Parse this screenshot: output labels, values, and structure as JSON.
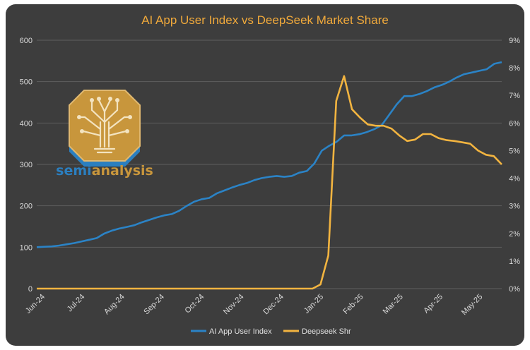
{
  "colors": {
    "background": "#3d3d3d",
    "title": "#f0a93b",
    "user_index": "#2b83c6",
    "deepseek": "#f2b440",
    "logo_gold": "#c8963c",
    "logo_blue": "#2b7fc0"
  },
  "logo": {
    "text_a": "semi",
    "text_b": "analysis",
    "icon": "tree-circuit-octagon-icon"
  },
  "chart_data": {
    "type": "line",
    "title": "AI App User Index vs DeepSeek Market Share",
    "xlabel": "",
    "ylabel": "",
    "y_left": {
      "ticks": [
        "0",
        "100",
        "200",
        "300",
        "400",
        "500",
        "600"
      ],
      "min": 0,
      "max": 600
    },
    "y_right": {
      "ticks": [
        "0%",
        "1%",
        "2%",
        "3%",
        "4%",
        "5%",
        "6%",
        "7%",
        "8%",
        "9%"
      ],
      "min": 0,
      "max": 9
    },
    "x_tick_labels": [
      "Jun-24",
      "Jul-24",
      "Aug-24",
      "Sep-24",
      "Oct-24",
      "Nov-24",
      "Dec-24",
      "Jan-25",
      "Feb-25",
      "Mar-25",
      "Apr-25",
      "May-25"
    ],
    "legend": {
      "position": "bottom"
    },
    "grid": true,
    "series": [
      {
        "name": "AI App User Index",
        "axis": "left",
        "values": [
          100,
          101,
          102,
          104,
          107,
          110,
          114,
          118,
          122,
          133,
          140,
          145,
          149,
          153,
          160,
          166,
          172,
          177,
          180,
          188,
          200,
          210,
          216,
          219,
          230,
          237,
          244,
          250,
          255,
          262,
          267,
          270,
          272,
          270,
          272,
          280,
          284,
          302,
          333,
          345,
          355,
          370,
          370,
          373,
          378,
          385,
          395,
          420,
          445,
          465,
          465,
          470,
          477,
          486,
          492,
          500,
          510,
          518,
          522,
          526,
          530,
          543,
          547
        ]
      },
      {
        "name": "Deepseek Shr",
        "axis": "right",
        "values": [
          0,
          0,
          0,
          0,
          0,
          0,
          0,
          0,
          0,
          0,
          0,
          0,
          0,
          0,
          0,
          0,
          0,
          0,
          0,
          0,
          0,
          0,
          0,
          0,
          0,
          0,
          0,
          0,
          0,
          0,
          0,
          0,
          0,
          0,
          0,
          0,
          0.15,
          1.2,
          6.8,
          7.7,
          6.5,
          6.2,
          5.95,
          5.9,
          5.9,
          5.8,
          5.55,
          5.35,
          5.4,
          5.6,
          5.6,
          5.45,
          5.38,
          5.35,
          5.3,
          5.25,
          5.0,
          4.85,
          4.8,
          4.5
        ]
      }
    ]
  }
}
